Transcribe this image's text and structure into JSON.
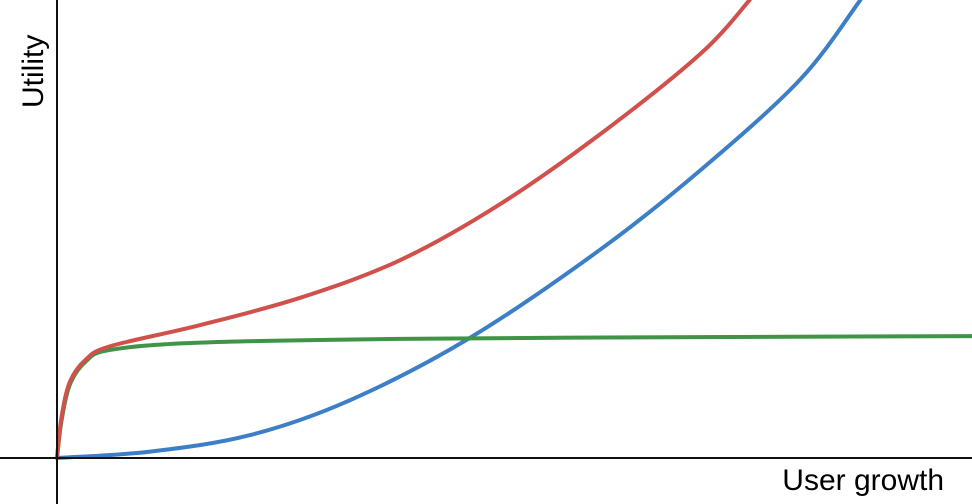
{
  "chart_data": {
    "type": "line",
    "title": "",
    "xlabel": "User growth",
    "ylabel": "Utility",
    "xlim": [
      0,
      10
    ],
    "ylim": [
      0,
      5
    ],
    "grid": false,
    "ticks": false,
    "legend": "none",
    "series": [
      {
        "color": "#3d7fc6",
        "x": [
          0,
          1.02,
          2.11,
          3.2,
          4.51,
          5.93,
          7.03,
          8.12,
          8.78
        ],
        "y": [
          0,
          0.07,
          0.25,
          0.63,
          1.31,
          2.27,
          3.14,
          4.13,
          5.0
        ]
      },
      {
        "color": "#3f9447",
        "x": [
          0,
          0.05,
          0.14,
          0.31,
          0.58,
          1.56,
          3.75,
          7.03,
          10
        ],
        "y": [
          0,
          0.41,
          0.8,
          1.05,
          1.18,
          1.26,
          1.3,
          1.32,
          1.33
        ]
      },
      {
        "color": "#d0504c",
        "x": [
          0,
          0.05,
          0.14,
          0.31,
          0.58,
          1.56,
          2.66,
          3.75,
          4.84,
          5.93,
          7.03,
          7.57
        ],
        "y": [
          0,
          0.45,
          0.83,
          1.07,
          1.22,
          1.45,
          1.75,
          2.16,
          2.77,
          3.53,
          4.41,
          5.0
        ]
      }
    ]
  }
}
